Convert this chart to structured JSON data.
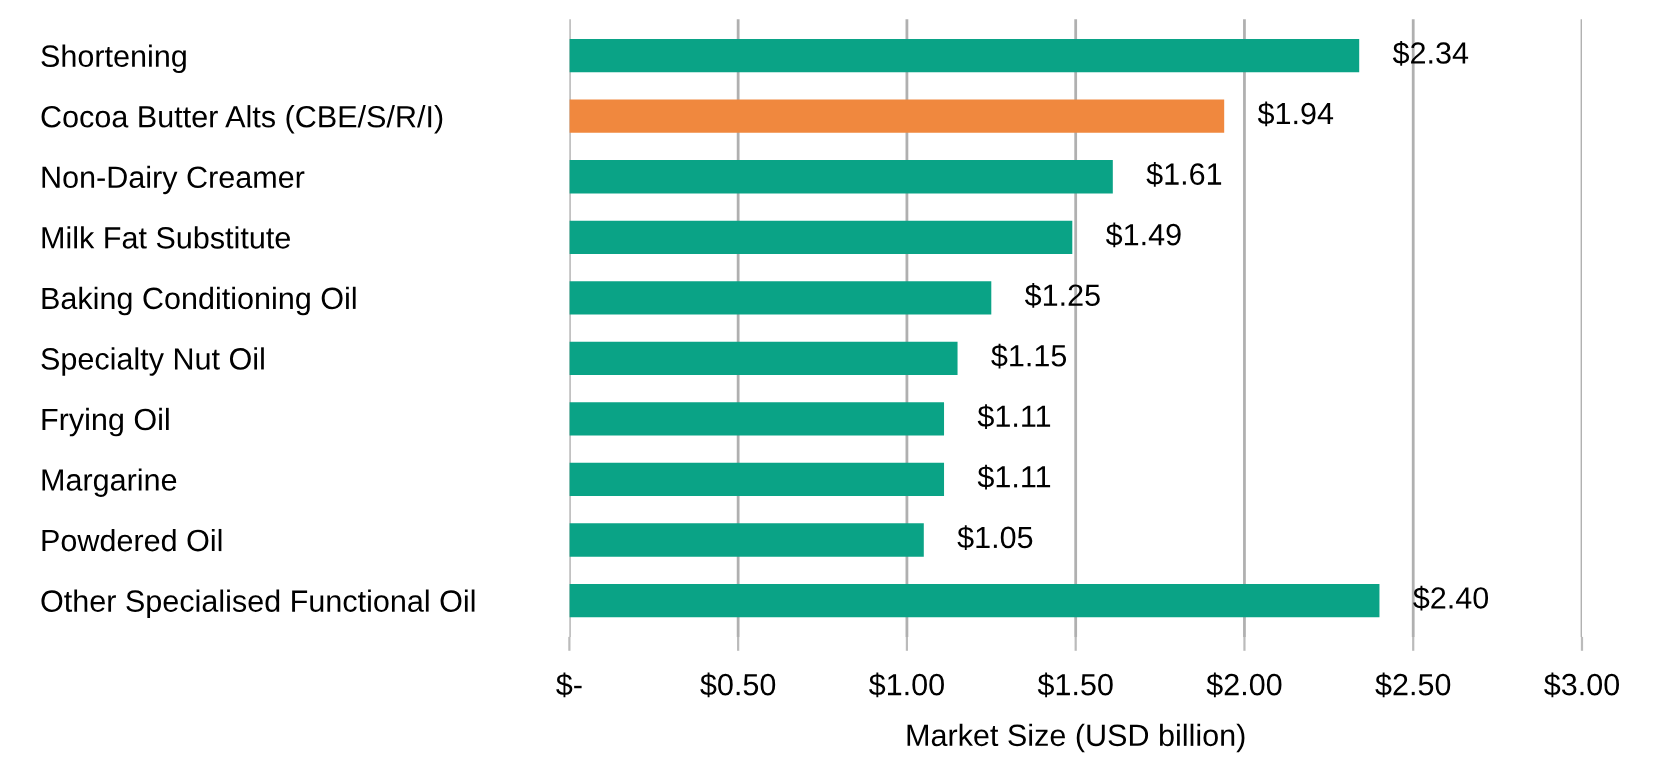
{
  "chart_data": {
    "type": "bar",
    "orientation": "horizontal",
    "xlabel": "Market Size (USD billion)",
    "categories": [
      "Shortening",
      "Cocoa Butter Alts (CBE/S/R/I)",
      "Non-Dairy Creamer",
      "Milk Fat Substitute",
      "Baking Conditioning Oil",
      "Specialty Nut Oil",
      "Frying Oil",
      "Margarine",
      "Powdered Oil",
      "Other Specialised Functional Oil"
    ],
    "values": [
      2.34,
      1.94,
      1.61,
      1.49,
      1.25,
      1.15,
      1.11,
      1.11,
      1.05,
      2.4
    ],
    "colors": [
      "#0aa386",
      "#f0883e",
      "#0aa386",
      "#0aa386",
      "#0aa386",
      "#0aa386",
      "#0aa386",
      "#0aa386",
      "#0aa386",
      "#0aa386"
    ],
    "value_labels": [
      "$2.34",
      "$1.94",
      "$1.61",
      "$1.49",
      "$1.25",
      "$1.15",
      "$1.11",
      "$1.11",
      "$1.05",
      "$2.40"
    ],
    "xlim": [
      0,
      3
    ],
    "xticks": [
      {
        "value": 0,
        "label": "$-"
      },
      {
        "value": 0.5,
        "label": "$0.50"
      },
      {
        "value": 1,
        "label": "$1.00"
      },
      {
        "value": 1.5,
        "label": "$1.50"
      },
      {
        "value": 2,
        "label": "$2.00"
      },
      {
        "value": 2.5,
        "label": "$2.50"
      },
      {
        "value": 3,
        "label": "$3.00"
      }
    ],
    "grid": "x",
    "legend": false
  }
}
